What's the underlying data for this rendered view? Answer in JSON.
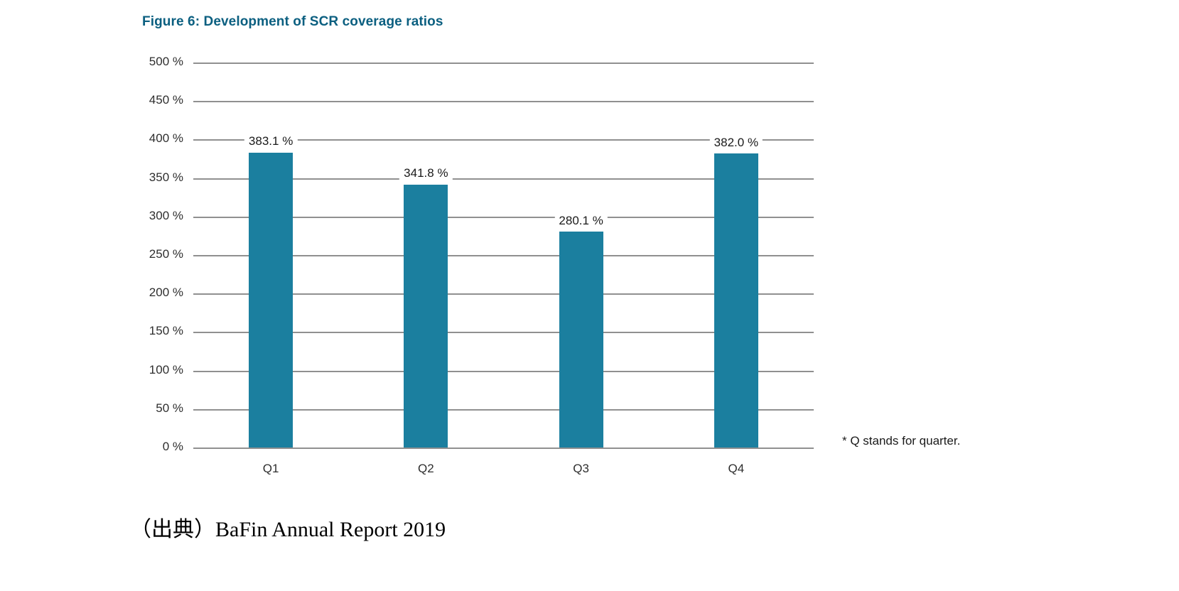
{
  "chart_data": {
    "type": "bar",
    "title": "Figure 6: Development of SCR coverage ratios",
    "categories": [
      "Q1",
      "Q2",
      "Q3",
      "Q4"
    ],
    "values": [
      383.1,
      341.8,
      280.1,
      382.0
    ],
    "value_labels": [
      "383.1 %",
      "341.8 %",
      "280.1 %",
      "382.0 %"
    ],
    "xlabel": "",
    "ylabel": "",
    "ylim": [
      0,
      500
    ],
    "ytick_step": 50,
    "ytick_suffix": " %",
    "grid": "horizontal",
    "legend": "none",
    "bar_color": "#1b7f9f",
    "title_color": "#0b5f80",
    "gridline_color": "#909090",
    "footnote": "* Q stands for quarter."
  },
  "source_line": "（出典）BaFin Annual Report 2019"
}
